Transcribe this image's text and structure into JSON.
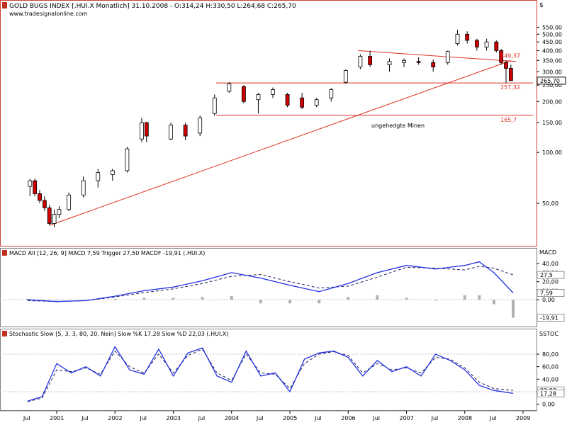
{
  "chart_data": [
    {
      "type": "candlestick",
      "title": "GOLD BUGS INDEX [.HUI.X Monatlich] 31.10.2008 - O:314,24 H:330,50 L:264,68 C:265,70",
      "source": "www.tradesignalonline.com",
      "currency_label": "$",
      "y_scale": "log",
      "ylim": [
        30,
        620
      ],
      "y_ticks": [
        50,
        100,
        150,
        200,
        250,
        300,
        350,
        400,
        450,
        500,
        550
      ],
      "y_tick_labels": [
        "50,00",
        "100,00",
        "150,00",
        "200,00",
        "250,00",
        "300,00",
        "350,00",
        "400,00",
        "450,00",
        "500,00",
        "550,00"
      ],
      "last_value_label": "265,70",
      "candles_approx": [
        {
          "date": "2000-07",
          "o": 63,
          "h": 70,
          "l": 55,
          "c": 68
        },
        {
          "date": "2000-08",
          "o": 68,
          "h": 70,
          "l": 55,
          "c": 57
        },
        {
          "date": "2000-09",
          "o": 57,
          "h": 60,
          "l": 50,
          "c": 52
        },
        {
          "date": "2000-10",
          "o": 52,
          "h": 55,
          "l": 45,
          "c": 47
        },
        {
          "date": "2000-11",
          "o": 47,
          "h": 49,
          "l": 37,
          "c": 38
        },
        {
          "date": "2000-12",
          "o": 38,
          "h": 46,
          "l": 36,
          "c": 43
        },
        {
          "date": "2001-01",
          "o": 43,
          "h": 48,
          "l": 41,
          "c": 46
        },
        {
          "date": "2001-03",
          "o": 46,
          "h": 58,
          "l": 45,
          "c": 56
        },
        {
          "date": "2001-06",
          "o": 56,
          "h": 72,
          "l": 54,
          "c": 68
        },
        {
          "date": "2001-09",
          "o": 68,
          "h": 80,
          "l": 62,
          "c": 76
        },
        {
          "date": "2001-12",
          "o": 74,
          "h": 80,
          "l": 68,
          "c": 78
        },
        {
          "date": "2002-03",
          "o": 78,
          "h": 108,
          "l": 76,
          "c": 105
        },
        {
          "date": "2002-06",
          "o": 120,
          "h": 160,
          "l": 115,
          "c": 150
        },
        {
          "date": "2002-07",
          "o": 150,
          "h": 152,
          "l": 115,
          "c": 125
        },
        {
          "date": "2002-12",
          "o": 120,
          "h": 150,
          "l": 118,
          "c": 145
        },
        {
          "date": "2003-03",
          "o": 145,
          "h": 150,
          "l": 118,
          "c": 125
        },
        {
          "date": "2003-06",
          "o": 130,
          "h": 165,
          "l": 125,
          "c": 160
        },
        {
          "date": "2003-09",
          "o": 170,
          "h": 220,
          "l": 165,
          "c": 210
        },
        {
          "date": "2003-12",
          "o": 230,
          "h": 260,
          "l": 225,
          "c": 255
        },
        {
          "date": "2004-03",
          "o": 245,
          "h": 250,
          "l": 195,
          "c": 200
        },
        {
          "date": "2004-06",
          "o": 205,
          "h": 225,
          "l": 170,
          "c": 220
        },
        {
          "date": "2004-09",
          "o": 220,
          "h": 242,
          "l": 210,
          "c": 235
        },
        {
          "date": "2004-12",
          "o": 220,
          "h": 225,
          "l": 185,
          "c": 190
        },
        {
          "date": "2005-03",
          "o": 210,
          "h": 225,
          "l": 180,
          "c": 185
        },
        {
          "date": "2005-06",
          "o": 190,
          "h": 210,
          "l": 185,
          "c": 205
        },
        {
          "date": "2005-09",
          "o": 210,
          "h": 240,
          "l": 200,
          "c": 235
        },
        {
          "date": "2005-12",
          "o": 260,
          "h": 310,
          "l": 255,
          "c": 305
        },
        {
          "date": "2006-03",
          "o": 320,
          "h": 380,
          "l": 310,
          "c": 370
        },
        {
          "date": "2006-05",
          "o": 370,
          "h": 400,
          "l": 320,
          "c": 330
        },
        {
          "date": "2006-09",
          "o": 330,
          "h": 360,
          "l": 300,
          "c": 345
        },
        {
          "date": "2006-12",
          "o": 340,
          "h": 360,
          "l": 320,
          "c": 350
        },
        {
          "date": "2007-03",
          "o": 345,
          "h": 365,
          "l": 330,
          "c": 340
        },
        {
          "date": "2007-06",
          "o": 340,
          "h": 355,
          "l": 300,
          "c": 320
        },
        {
          "date": "2007-09",
          "o": 340,
          "h": 400,
          "l": 330,
          "c": 395
        },
        {
          "date": "2007-11",
          "o": 440,
          "h": 530,
          "l": 430,
          "c": 500
        },
        {
          "date": "2008-01",
          "o": 500,
          "h": 520,
          "l": 440,
          "c": 460
        },
        {
          "date": "2008-03",
          "o": 460,
          "h": 470,
          "l": 400,
          "c": 420
        },
        {
          "date": "2008-05",
          "o": 420,
          "h": 470,
          "l": 400,
          "c": 450
        },
        {
          "date": "2008-07",
          "o": 450,
          "h": 460,
          "l": 390,
          "c": 400
        },
        {
          "date": "2008-08",
          "o": 400,
          "h": 410,
          "l": 330,
          "c": 340
        },
        {
          "date": "2008-09",
          "o": 340,
          "h": 350,
          "l": 257,
          "c": 314
        },
        {
          "date": "2008-10",
          "o": 314.24,
          "h": 330.5,
          "l": 264.68,
          "c": 265.7
        }
      ],
      "horizontal_lines": [
        {
          "label": "257,32",
          "value": 257.32
        },
        {
          "label": "165,7",
          "value": 165.7
        }
      ],
      "trendlines": [
        {
          "label": "349,37",
          "from": {
            "date": "2000-11",
            "value": 37
          },
          "to": {
            "date": "2008-10",
            "value": 349.37
          }
        }
      ],
      "annotations": [
        "ungehedgte Minen"
      ],
      "colors": {
        "up_fill": "#ffffff",
        "down_fill": "#d00000",
        "border": "#000000",
        "lines": "#e03020"
      }
    },
    {
      "type": "line",
      "title": "MACD All [12, 26, 9] MACD 7,59 Trigger 27,50 MACDF -19,91 (.HUI.X)",
      "label_side": "MACD",
      "ylim": [
        -25,
        48
      ],
      "y_ticks": [
        40,
        30,
        20,
        10,
        0
      ],
      "y_tick_labels": [
        "40,00",
        "30,00",
        "20,00",
        "10,00",
        "0,00"
      ],
      "value_labels": [
        "27,5",
        "7,59",
        "-19,91"
      ],
      "x_years": [
        2000.5,
        2001,
        2001.5,
        2002,
        2002.5,
        2003,
        2003.5,
        2004,
        2004.5,
        2005,
        2005.5,
        2006,
        2006.5,
        2007,
        2007.5,
        2008,
        2008.25,
        2008.5,
        2008.83
      ],
      "series": [
        {
          "name": "MACD",
          "values": [
            0,
            -2,
            -1,
            4,
            10,
            14,
            21,
            30,
            24,
            16,
            9,
            18,
            30,
            38,
            34,
            38,
            42,
            30,
            7.59
          ]
        },
        {
          "name": "Trigger",
          "values": [
            -1,
            -2,
            -1,
            3,
            8,
            12,
            18,
            26,
            28,
            20,
            13,
            15,
            25,
            36,
            35,
            33,
            37,
            35,
            27.5
          ]
        },
        {
          "name": "MACDF",
          "values": [
            1,
            0,
            0,
            1,
            2,
            2,
            3,
            4,
            -4,
            -4,
            -4,
            3,
            5,
            2,
            -1,
            5,
            5,
            -5,
            -19.91
          ]
        }
      ]
    },
    {
      "type": "line",
      "title": "Stochastic Slow [5, 3, 3, 80, 20, Nein] Slow %K 17,28 Slow %D 22,03 (.HUI.X)",
      "label_side": "SSTOC",
      "ylim": [
        -5,
        105
      ],
      "y_ticks": [
        80,
        60,
        40,
        20,
        0
      ],
      "y_tick_labels": [
        "80,00",
        "60,00",
        "40,00",
        "20,00",
        "0,00"
      ],
      "value_labels": [
        "22,03",
        "17,28"
      ],
      "x_years": [
        2000.5,
        2000.75,
        2001,
        2001.25,
        2001.5,
        2001.75,
        2002,
        2002.25,
        2002.5,
        2002.75,
        2003,
        2003.25,
        2003.5,
        2003.75,
        2004,
        2004.25,
        2004.5,
        2004.75,
        2005,
        2005.25,
        2005.5,
        2005.75,
        2006,
        2006.25,
        2006.5,
        2006.75,
        2007,
        2007.25,
        2007.5,
        2007.75,
        2008,
        2008.25,
        2008.5,
        2008.83
      ],
      "series": [
        {
          "name": "Slow %K",
          "values": [
            5,
            12,
            65,
            50,
            60,
            45,
            92,
            55,
            48,
            88,
            45,
            82,
            90,
            45,
            35,
            85,
            45,
            50,
            20,
            72,
            82,
            85,
            75,
            45,
            70,
            52,
            60,
            45,
            80,
            70,
            55,
            30,
            22,
            17.28
          ]
        },
        {
          "name": "Slow %D",
          "values": [
            4,
            10,
            55,
            52,
            58,
            48,
            85,
            60,
            50,
            80,
            50,
            78,
            88,
            50,
            38,
            80,
            50,
            48,
            25,
            65,
            80,
            84,
            78,
            50,
            65,
            55,
            58,
            50,
            75,
            72,
            58,
            35,
            25,
            22.03
          ]
        }
      ]
    }
  ],
  "x_axis": {
    "year_labels": [
      "2001",
      "2002",
      "2003",
      "2004",
      "2005",
      "2006",
      "2007",
      "2008",
      "2009"
    ],
    "mid_labels": [
      "Jul",
      "Jul",
      "Jul",
      "Jul",
      "Jul",
      "Jul",
      "Jul",
      "Jul",
      "Jul"
    ]
  }
}
